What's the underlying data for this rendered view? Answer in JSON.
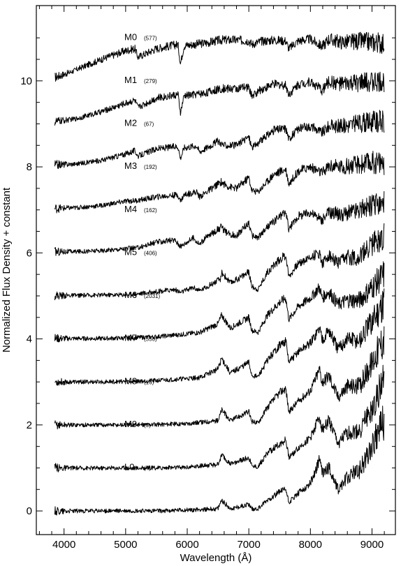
{
  "chart_data": {
    "type": "line",
    "xlabel": "Wavelength (Å)",
    "ylabel": "Normalized Flux Density + constant",
    "xlim": [
      3550,
      9380
    ],
    "ylim": [
      -0.55,
      11.75
    ],
    "xticks": [
      4000,
      5000,
      6000,
      7000,
      8000,
      9000
    ],
    "yticks": [
      0,
      2,
      4,
      6,
      8,
      10
    ],
    "grid": false,
    "series": [
      {
        "name": "M0",
        "count": "(577)",
        "offset": 10,
        "x": [
          3850,
          4100,
          4400,
          4700,
          5000,
          5150,
          5200,
          5500,
          5850,
          5890,
          5950,
          6300,
          6550,
          6800,
          7000,
          7050,
          7200,
          7400,
          7600,
          7650,
          7800,
          8000,
          8190,
          8300,
          8500,
          8800,
          9000,
          9200
        ],
        "y": [
          10.08,
          10.2,
          10.38,
          10.55,
          10.7,
          10.75,
          10.55,
          10.75,
          10.85,
          10.4,
          10.82,
          10.88,
          10.95,
          10.95,
          10.93,
          10.85,
          10.92,
          10.95,
          10.93,
          10.75,
          10.93,
          10.97,
          10.8,
          10.97,
          10.9,
          10.92,
          10.9,
          10.88
        ]
      },
      {
        "name": "M1",
        "count": "(279)",
        "offset": 9,
        "x": [
          3850,
          4200,
          4600,
          5000,
          5150,
          5200,
          5500,
          5850,
          5890,
          5950,
          6300,
          6550,
          6800,
          7000,
          7050,
          7200,
          7400,
          7600,
          7650,
          7800,
          8000,
          8190,
          8300,
          8500,
          8800,
          9000,
          9200
        ],
        "y": [
          9.05,
          9.12,
          9.28,
          9.48,
          9.55,
          9.38,
          9.6,
          9.68,
          9.25,
          9.65,
          9.72,
          9.82,
          9.82,
          9.85,
          9.65,
          9.8,
          9.92,
          9.9,
          9.68,
          9.92,
          9.98,
          9.78,
          9.98,
          9.92,
          9.95,
          9.98,
          9.95
        ]
      },
      {
        "name": "M2",
        "count": "(67)",
        "offset": 8,
        "x": [
          3850,
          4200,
          4600,
          5000,
          5150,
          5200,
          5500,
          5850,
          5890,
          5950,
          6150,
          6200,
          6500,
          6600,
          6800,
          7000,
          7050,
          7150,
          7400,
          7600,
          7650,
          7800,
          8000,
          8190,
          8300,
          8500,
          8800,
          9000,
          9200
        ],
        "y": [
          8.05,
          8.07,
          8.15,
          8.3,
          8.38,
          8.25,
          8.42,
          8.48,
          8.2,
          8.45,
          8.5,
          8.35,
          8.6,
          8.5,
          8.5,
          8.7,
          8.45,
          8.55,
          8.85,
          8.9,
          8.65,
          8.88,
          8.95,
          8.8,
          8.95,
          8.95,
          9.02,
          9.05,
          9.05
        ]
      },
      {
        "name": "M3",
        "count": "(192)",
        "offset": 7,
        "x": [
          3850,
          4200,
          4600,
          5000,
          5200,
          5500,
          5850,
          5890,
          5950,
          6150,
          6200,
          6550,
          6650,
          6800,
          7000,
          7050,
          7150,
          7400,
          7600,
          7650,
          7800,
          8000,
          8190,
          8300,
          8500,
          8800,
          9000,
          9200
        ],
        "y": [
          7.03,
          7.05,
          7.1,
          7.2,
          7.22,
          7.3,
          7.35,
          7.2,
          7.35,
          7.42,
          7.3,
          7.65,
          7.55,
          7.5,
          7.75,
          7.45,
          7.42,
          7.82,
          7.95,
          7.6,
          7.9,
          8.0,
          7.85,
          8.02,
          8.0,
          8.05,
          8.1,
          8.1
        ]
      },
      {
        "name": "M4",
        "count": "(162)",
        "offset": 6,
        "x": [
          3850,
          4200,
          4600,
          5000,
          5200,
          5500,
          5800,
          5890,
          6100,
          6200,
          6300,
          6550,
          6650,
          6800,
          7000,
          7050,
          7150,
          7300,
          7500,
          7600,
          7650,
          7800,
          8000,
          8190,
          8300,
          8500,
          8800,
          9000,
          9200
        ],
        "y": [
          6.03,
          6.03,
          6.05,
          6.1,
          6.12,
          6.25,
          6.3,
          6.15,
          6.35,
          6.2,
          6.35,
          6.6,
          6.45,
          6.4,
          6.7,
          6.4,
          6.35,
          6.6,
          6.85,
          6.95,
          6.55,
          6.85,
          6.95,
          6.75,
          6.95,
          6.9,
          7.0,
          7.1,
          7.15
        ]
      },
      {
        "name": "M5",
        "count": "(406)",
        "offset": 5,
        "x": [
          3850,
          4200,
          4600,
          5000,
          5200,
          5500,
          5800,
          5890,
          6100,
          6200,
          6300,
          6550,
          6560,
          6700,
          7000,
          7050,
          7150,
          7300,
          7500,
          7600,
          7650,
          7800,
          8000,
          8150,
          8190,
          8300,
          8450,
          8600,
          8800,
          9000,
          9200
        ],
        "y": [
          5.01,
          5.01,
          5.02,
          5.03,
          5.05,
          5.1,
          5.15,
          5.08,
          5.2,
          5.12,
          5.2,
          5.4,
          5.55,
          5.3,
          5.55,
          5.22,
          5.15,
          5.55,
          5.85,
          5.95,
          5.45,
          5.75,
          5.9,
          6.0,
          5.75,
          5.95,
          5.75,
          5.9,
          5.9,
          6.2,
          6.4
        ]
      },
      {
        "name": "M6",
        "count": "(2031)",
        "offset": 4,
        "x": [
          3850,
          4200,
          4600,
          5000,
          5500,
          5890,
          6200,
          6500,
          6560,
          6700,
          7000,
          7050,
          7150,
          7300,
          7500,
          7600,
          7650,
          7800,
          8000,
          8150,
          8190,
          8300,
          8450,
          8600,
          8800,
          9000,
          9200
        ],
        "y": [
          4.01,
          4.01,
          4.01,
          4.02,
          4.05,
          4.1,
          4.15,
          4.35,
          4.55,
          4.25,
          4.5,
          4.2,
          4.15,
          4.55,
          4.85,
          4.95,
          4.45,
          4.75,
          4.95,
          5.2,
          4.95,
          5.1,
          4.8,
          4.9,
          4.9,
          5.2,
          5.5
        ]
      },
      {
        "name": "M7",
        "count": "(550)",
        "offset": 3,
        "x": [
          3850,
          4200,
          4600,
          5000,
          5500,
          5890,
          6200,
          6500,
          6560,
          6700,
          7000,
          7050,
          7150,
          7300,
          7500,
          7600,
          7650,
          7800,
          8000,
          8150,
          8190,
          8300,
          8450,
          8600,
          8800,
          9000,
          9200
        ],
        "y": [
          3.0,
          3.0,
          3.0,
          3.01,
          3.03,
          3.07,
          3.1,
          3.3,
          3.55,
          3.2,
          3.45,
          3.15,
          3.12,
          3.5,
          3.85,
          3.95,
          3.45,
          3.7,
          3.9,
          4.25,
          4.0,
          4.2,
          3.75,
          4.0,
          3.95,
          4.4,
          4.9
        ]
      },
      {
        "name": "M8",
        "count": "(16)",
        "offset": 2,
        "x": [
          3850,
          4500,
          5000,
          5500,
          6000,
          6500,
          6560,
          6700,
          7000,
          7050,
          7150,
          7300,
          7500,
          7600,
          7650,
          7800,
          8000,
          8150,
          8190,
          8300,
          8450,
          8600,
          8800,
          9000,
          9200
        ],
        "y": [
          2.0,
          2.0,
          2.0,
          2.01,
          2.03,
          2.1,
          2.35,
          2.1,
          2.3,
          2.08,
          2.05,
          2.4,
          2.75,
          2.85,
          2.3,
          2.55,
          2.8,
          3.3,
          3.0,
          3.15,
          2.65,
          2.9,
          2.9,
          3.45,
          4.05
        ]
      },
      {
        "name": "M9",
        "count": "(5)",
        "offset": 1,
        "x": [
          3850,
          4500,
          5000,
          5500,
          6000,
          6500,
          6560,
          6700,
          7000,
          7050,
          7150,
          7300,
          7500,
          7600,
          7650,
          7800,
          8000,
          8150,
          8190,
          8300,
          8450,
          8600,
          8800,
          9000,
          9200
        ],
        "y": [
          1.0,
          1.0,
          1.0,
          1.0,
          1.02,
          1.08,
          1.3,
          1.08,
          1.25,
          1.05,
          1.03,
          1.35,
          1.55,
          1.65,
          1.25,
          1.45,
          1.7,
          2.2,
          1.9,
          2.1,
          1.55,
          1.8,
          1.85,
          2.4,
          3.05
        ]
      },
      {
        "name": "L0",
        "count": "(4)",
        "offset": 0,
        "x": [
          3850,
          4500,
          5000,
          5500,
          6000,
          6500,
          6560,
          6700,
          7000,
          7050,
          7150,
          7300,
          7500,
          7600,
          7650,
          7800,
          8000,
          8150,
          8190,
          8300,
          8450,
          8600,
          8800,
          9000,
          9200
        ],
        "y": [
          0.0,
          0.0,
          0.0,
          0.0,
          0.02,
          0.05,
          0.25,
          0.05,
          0.15,
          0.05,
          0.05,
          0.25,
          0.45,
          0.5,
          0.2,
          0.4,
          0.65,
          1.2,
          0.9,
          1.0,
          0.5,
          0.8,
          0.95,
          1.5,
          2.1
        ]
      }
    ]
  }
}
